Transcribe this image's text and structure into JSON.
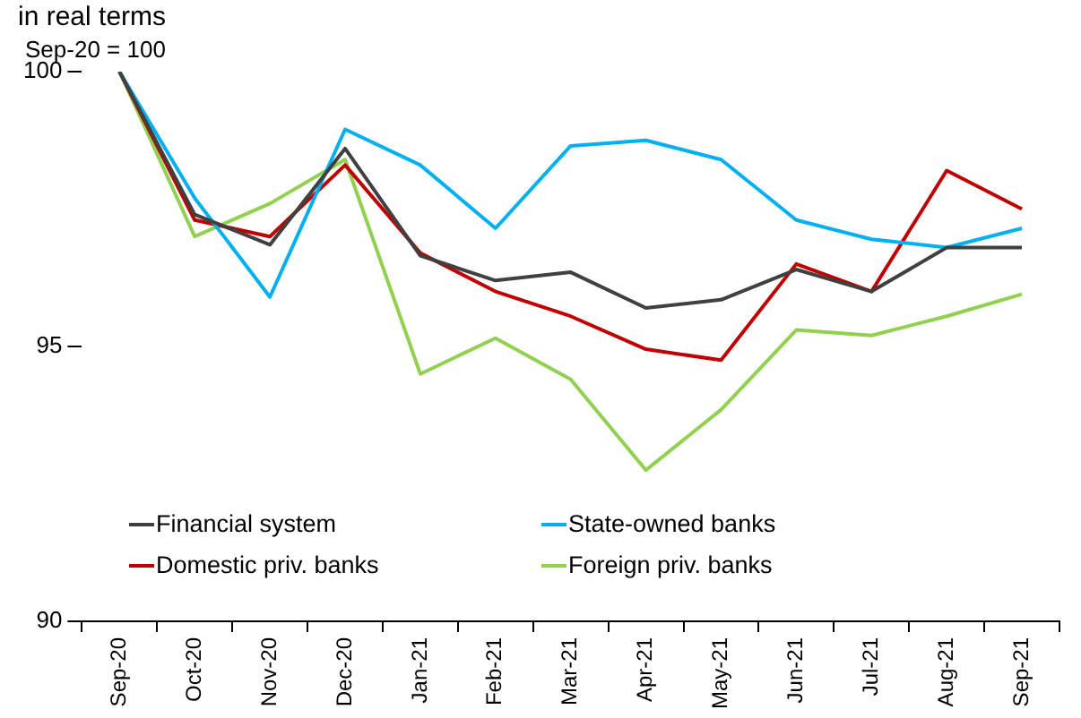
{
  "chart_data": {
    "type": "line",
    "title": "in real terms",
    "subtitle": "Sep-20 = 100",
    "categories": [
      "Sep-20",
      "Oct-20",
      "Nov-20",
      "Dec-20",
      "Jan-21",
      "Feb-21",
      "Mar-21",
      "Apr-21",
      "May-21",
      "Jun-21",
      "Jul-21",
      "Aug-21",
      "Sep-21"
    ],
    "ylim": [
      90,
      100
    ],
    "yticks": [
      90,
      95,
      100
    ],
    "grid": false,
    "legend": "bottom",
    "marker": "none",
    "line_style": "solid",
    "series": [
      {
        "name": "Financial system",
        "color": "#404040",
        "values": [
          100,
          97.4,
          96.85,
          98.6,
          96.65,
          96.2,
          96.35,
          95.7,
          95.85,
          96.4,
          96.0,
          96.8,
          96.8
        ]
      },
      {
        "name": "State-owned banks",
        "color": "#00b0f0",
        "values": [
          100,
          97.7,
          95.9,
          98.95,
          98.3,
          97.15,
          98.65,
          98.75,
          98.4,
          97.3,
          96.95,
          96.8,
          97.15
        ]
      },
      {
        "name": "Domestic priv. banks",
        "color": "#c00000",
        "values": [
          100,
          97.3,
          97.0,
          98.3,
          96.7,
          96.0,
          95.55,
          94.95,
          94.75,
          96.5,
          96.0,
          98.2,
          97.5
        ]
      },
      {
        "name": "Foreign priv. banks",
        "color": "#92d050",
        "values": [
          100,
          97.0,
          97.6,
          98.4,
          94.5,
          95.15,
          94.4,
          92.75,
          93.85,
          95.3,
          95.2,
          95.55,
          95.95
        ]
      }
    ]
  }
}
